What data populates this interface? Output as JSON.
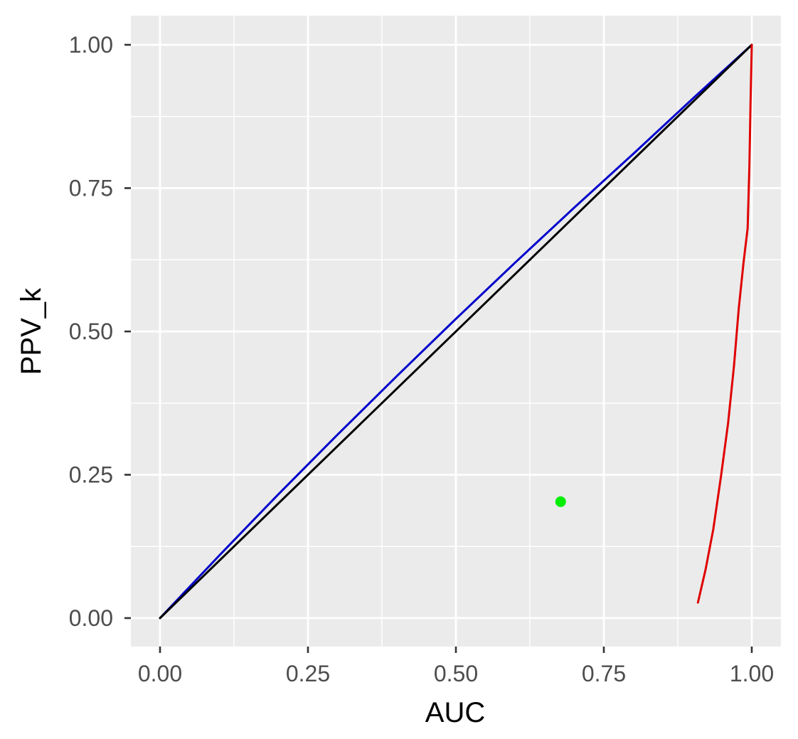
{
  "chart_data": {
    "type": "line",
    "title": "",
    "xlabel": "AUC",
    "ylabel": "PPV_k",
    "xlim": [
      -0.05,
      1.05
    ],
    "ylim": [
      -0.05,
      1.05
    ],
    "x_ticks": [
      0.0,
      0.25,
      0.5,
      0.75,
      1.0
    ],
    "x_tick_labels": [
      "0.00",
      "0.25",
      "0.50",
      "0.75",
      "1.00"
    ],
    "y_ticks": [
      0.0,
      0.25,
      0.5,
      0.75,
      1.0
    ],
    "y_tick_labels": [
      "0.00",
      "0.25",
      "0.50",
      "0.75",
      "1.00"
    ],
    "x_minor_ticks": [
      0.125,
      0.375,
      0.625,
      0.875
    ],
    "y_minor_ticks": [
      0.125,
      0.375,
      0.625,
      0.875
    ],
    "grid": true,
    "legend": "none",
    "panel_background": "#EBEBEB",
    "grid_color": "#FFFFFF",
    "series": [
      {
        "kind": "line",
        "color": "#0000CC",
        "points": [
          [
            0.0,
            0.0
          ],
          [
            0.1,
            0.109
          ],
          [
            0.2,
            0.216
          ],
          [
            0.3,
            0.32
          ],
          [
            0.4,
            0.422
          ],
          [
            0.5,
            0.522
          ],
          [
            0.6,
            0.62
          ],
          [
            0.7,
            0.716
          ],
          [
            0.8,
            0.81
          ],
          [
            0.9,
            0.906
          ],
          [
            1.0,
            1.0
          ]
        ]
      },
      {
        "kind": "line",
        "color": "#000000",
        "points": [
          [
            0.0,
            0.0
          ],
          [
            1.0,
            1.0
          ]
        ]
      },
      {
        "kind": "line",
        "color": "#E00000",
        "points": [
          [
            0.909,
            0.027
          ],
          [
            0.922,
            0.085
          ],
          [
            0.935,
            0.155
          ],
          [
            0.948,
            0.247
          ],
          [
            0.96,
            0.34
          ],
          [
            0.97,
            0.44
          ],
          [
            0.978,
            0.54
          ],
          [
            0.986,
            0.62
          ],
          [
            0.993,
            0.68
          ],
          [
            0.996,
            0.79
          ],
          [
            0.998,
            0.9
          ],
          [
            1.0,
            1.0
          ]
        ]
      },
      {
        "kind": "point",
        "color": "#00EE00",
        "points": [
          [
            0.677,
            0.203
          ]
        ]
      }
    ]
  }
}
